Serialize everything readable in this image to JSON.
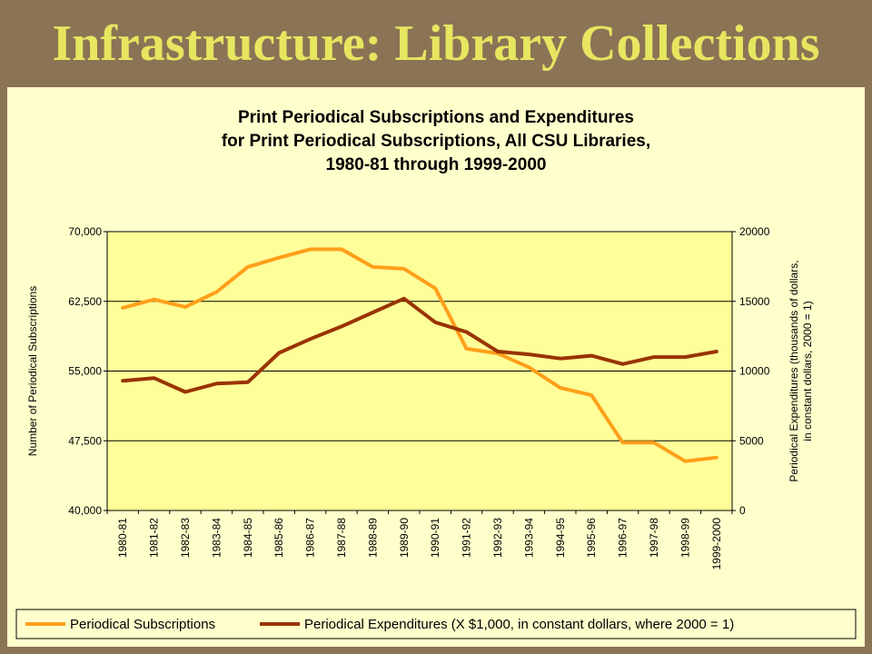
{
  "slide_title": "Infrastructure:  Library Collections",
  "colors": {
    "background": "#8B7355",
    "title": "#E6E660",
    "panel": "#FFFFCC",
    "plot_area": "#FFFF99",
    "subscriptions": "#FF9F1A",
    "expenditures": "#993300"
  },
  "chart_data": {
    "type": "line",
    "title": [
      "Print Periodical Subscriptions and Expenditures",
      "for Print Periodical Subscriptions, All CSU Libraries,",
      "1980-81 through 1999-2000"
    ],
    "categories": [
      "1980-81",
      "1981-82",
      "1982-83",
      "1983-84",
      "1984-85",
      "1985-86",
      "1986-87",
      "1987-88",
      "1988-89",
      "1989-90",
      "1990-91",
      "1991-92",
      "1992-93",
      "1993-94",
      "1994-95",
      "1995-96",
      "1996-97",
      "1997-98",
      "1998-99",
      "1999-2000"
    ],
    "y_left": {
      "label": "Number of Periodical Subscriptions",
      "range": [
        40000,
        70000
      ],
      "ticks": [
        40000,
        47500,
        55000,
        62500,
        70000
      ],
      "tick_labels": [
        "40,000",
        "47,500",
        "55,000",
        "62,500",
        "70,000"
      ]
    },
    "y_right": {
      "label_lines": [
        "Periodical Expenditures (thousands of dollars,",
        "in constant dollars, 2000 = 1)"
      ],
      "range": [
        0,
        20000
      ],
      "ticks": [
        0,
        5000,
        10000,
        15000,
        20000
      ],
      "tick_labels": [
        "0",
        "5000",
        "10000",
        "15000",
        "20000"
      ]
    },
    "grid": true,
    "legend_position": "bottom",
    "series": [
      {
        "name": "Periodical Subscriptions",
        "axis": "left",
        "values": [
          61800,
          62700,
          61900,
          63500,
          66200,
          67200,
          68100,
          68100,
          66200,
          66000,
          63900,
          57400,
          56900,
          55400,
          53200,
          52400,
          47300,
          47300,
          45300,
          45700
        ]
      },
      {
        "name": "Periodical Expenditures (X $1,000, in constant dollars, where 2000 = 1)",
        "axis": "right",
        "values": [
          9300,
          9500,
          8500,
          9100,
          9200,
          11300,
          12300,
          13200,
          14200,
          15200,
          13500,
          12800,
          11400,
          11200,
          10900,
          11100,
          10500,
          11000,
          11000,
          11400
        ]
      }
    ]
  }
}
